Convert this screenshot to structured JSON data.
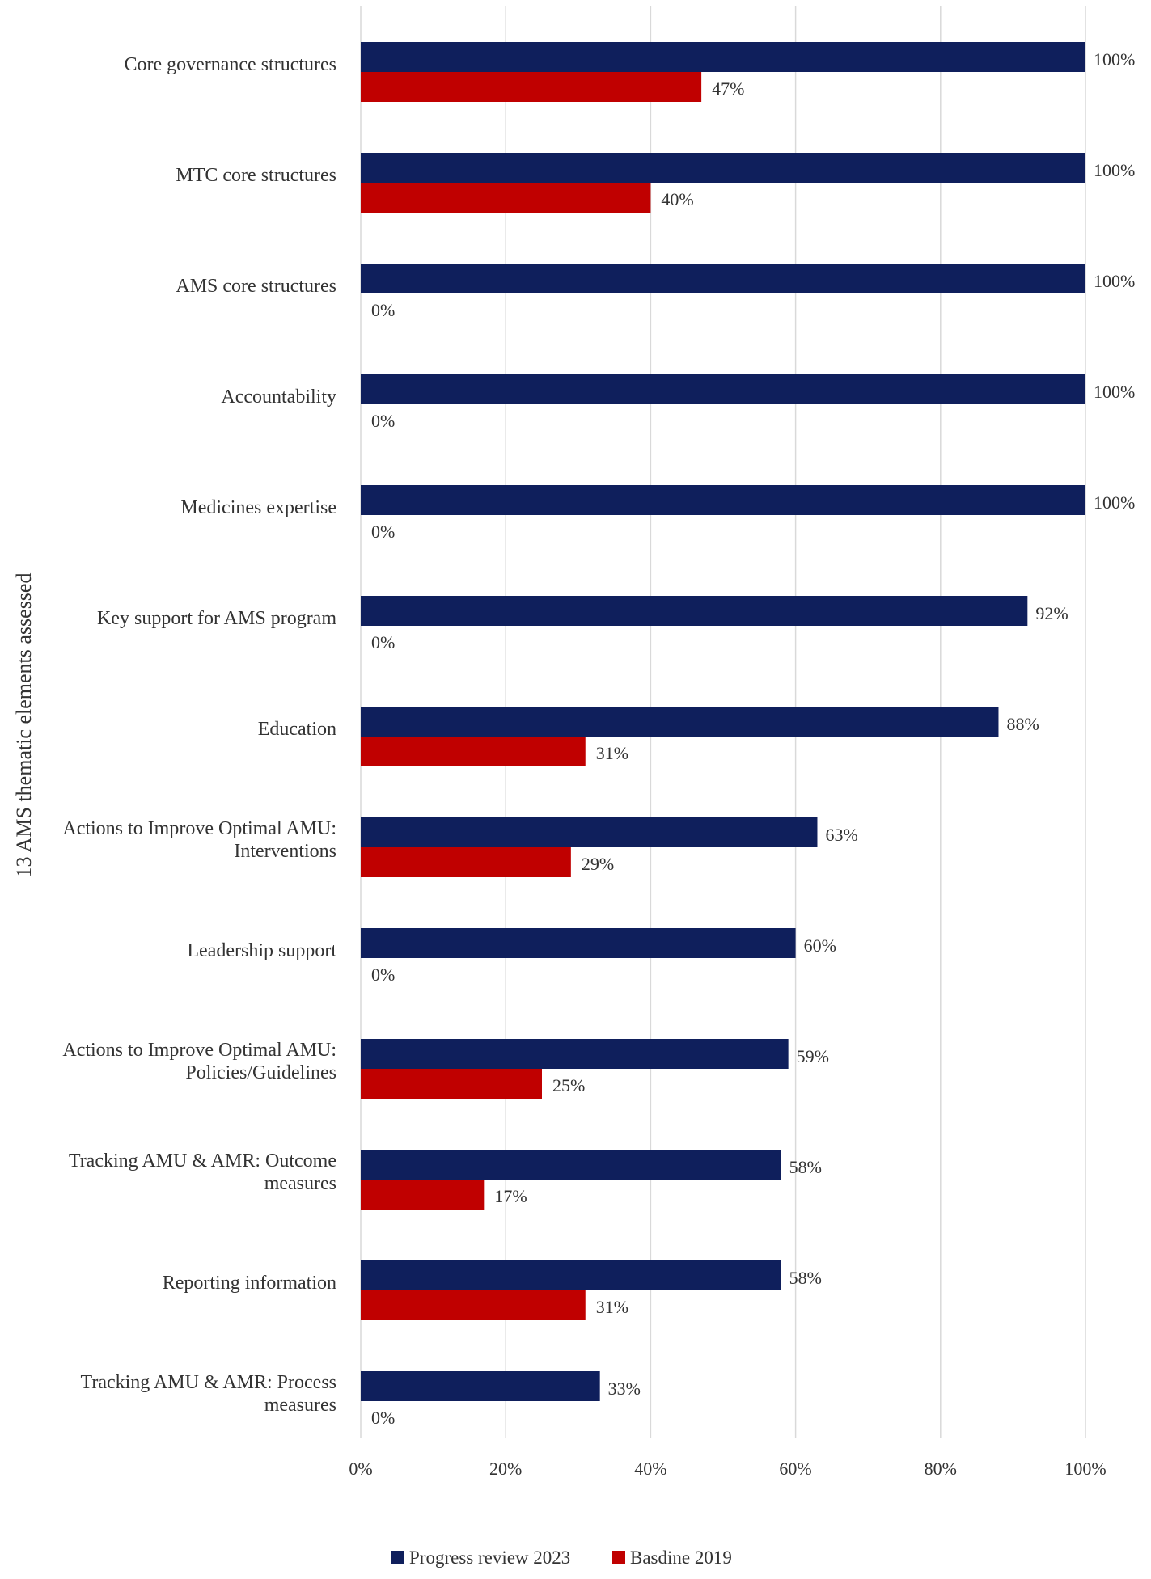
{
  "chart_data": {
    "type": "bar",
    "orientation": "horizontal",
    "title": "",
    "xlabel": "",
    "ylabel": "13 AMS thematic elements assessed",
    "xlim": [
      0,
      100
    ],
    "x_ticks": [
      "0%",
      "20%",
      "40%",
      "60%",
      "80%",
      "100%"
    ],
    "grid": true,
    "legend_position": "bottom",
    "categories": [
      [
        "Core governance structures"
      ],
      [
        "MTC core structures"
      ],
      [
        "AMS core structures"
      ],
      [
        "Accountability"
      ],
      [
        "Medicines expertise"
      ],
      [
        "Key support for AMS program"
      ],
      [
        "Education"
      ],
      [
        "Actions to Improve Optimal AMU:",
        "Interventions"
      ],
      [
        "Leadership support"
      ],
      [
        "Actions to Improve Optimal AMU:",
        "Policies/Guidelines"
      ],
      [
        "Tracking AMU & AMR: Outcome",
        "measures"
      ],
      [
        "Reporting information"
      ],
      [
        "Tracking AMU & AMR: Process",
        "measures"
      ]
    ],
    "series": [
      {
        "name": "Progress review 2023",
        "color": "#0f1f5c",
        "values": [
          100,
          100,
          100,
          100,
          100,
          92,
          88,
          63,
          60,
          59,
          58,
          58,
          33
        ],
        "labels": [
          "100%",
          "100%",
          "100%",
          "100%",
          "100%",
          "92%",
          "88%",
          "63%",
          "60%",
          "59%",
          "58%",
          "58%",
          "33%"
        ]
      },
      {
        "name": "Basdine 2019",
        "color": "#c00000",
        "values": [
          47,
          40,
          0,
          0,
          0,
          0,
          31,
          29,
          0,
          25,
          17,
          31,
          0
        ],
        "labels": [
          "47%",
          "40%",
          "0%",
          "0%",
          "0%",
          "0%",
          "31%",
          "29%",
          "0%",
          "25%",
          "17%",
          "31%",
          "0%"
        ]
      }
    ]
  }
}
